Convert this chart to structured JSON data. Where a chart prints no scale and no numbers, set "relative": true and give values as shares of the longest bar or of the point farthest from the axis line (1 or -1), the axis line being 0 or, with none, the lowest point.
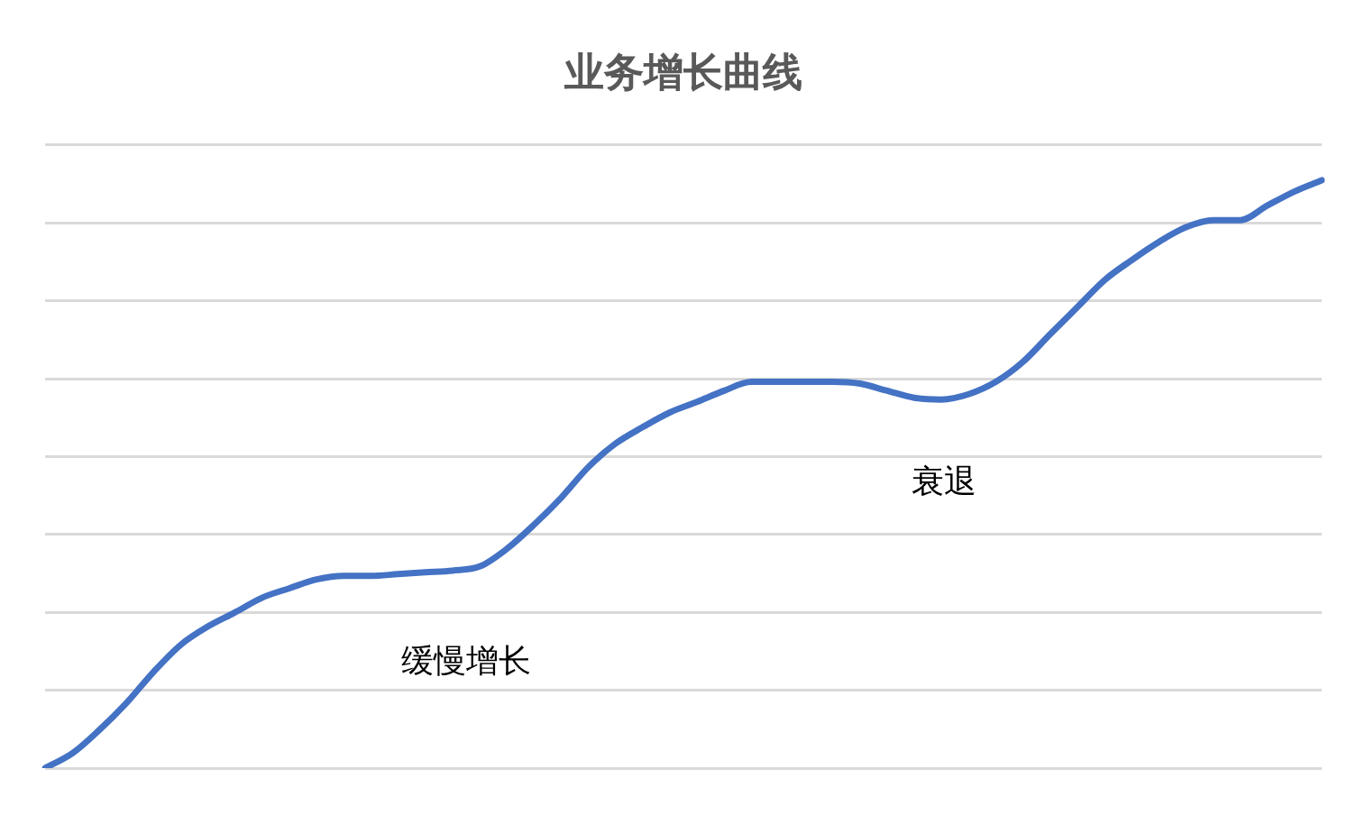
{
  "chart_data": {
    "type": "line",
    "title": "业务增长曲线",
    "relative": true,
    "grid": "y",
    "legend": false,
    "marker": "none",
    "line_style": "solid",
    "categories": [
      null,
      null,
      null,
      null,
      null,
      null,
      null,
      null,
      null,
      null,
      null,
      null,
      null,
      null,
      null,
      null,
      null,
      null,
      null,
      null,
      null,
      null,
      null,
      null,
      null,
      null,
      null,
      null,
      null,
      null,
      null,
      null,
      null,
      null,
      null,
      null,
      null,
      null,
      null,
      null,
      null,
      null,
      null,
      null,
      null,
      null,
      null,
      null
    ],
    "series": [
      {
        "color": "#4472c4",
        "values": [
          0,
          0.025,
          0.065,
          0.111,
          0.164,
          0.21,
          0.241,
          0.265,
          0.29,
          0.306,
          0.321,
          0.327,
          0.327,
          0.33,
          0.333,
          0.336,
          0.343,
          0.373,
          0.414,
          0.46,
          0.512,
          0.552,
          0.58,
          0.605,
          0.623,
          0.642,
          0.657,
          0.657,
          0.657,
          0.657,
          0.654,
          0.642,
          0.63,
          0.627,
          0.636,
          0.657,
          0.691,
          0.738,
          0.784,
          0.83,
          0.864,
          0.895,
          0.92,
          0.932,
          0.932,
          0.957,
          0.981,
          1
        ]
      }
    ],
    "annotations": [
      "缓慢增长",
      "衰退"
    ]
  }
}
